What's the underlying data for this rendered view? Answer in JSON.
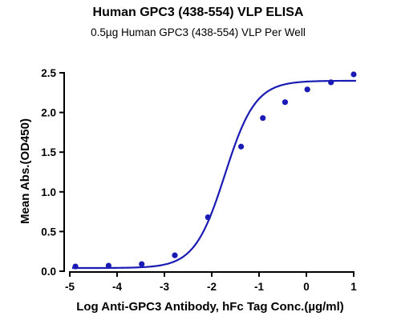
{
  "chart_data": {
    "type": "scatter",
    "title": "Human GPC3 (438-554) VLP ELISA",
    "subtitle": "0.5µg Human GPC3 (438-554) VLP Per Well",
    "xlabel": "Log Anti-GPC3 Antibody, hFc Tag Conc.(µg/ml)",
    "ylabel": "Mean Abs.(OD450)",
    "xlim": [
      -5,
      1
    ],
    "ylim": [
      0,
      2.5
    ],
    "xticks": [
      "-5",
      "-4",
      "-3",
      "-2",
      "-1",
      "0",
      "1"
    ],
    "yticks": [
      "0.0",
      "0.5",
      "1.0",
      "1.5",
      "2.0",
      "2.5"
    ],
    "grid": false,
    "legend": "none",
    "series": [
      {
        "points": [
          {
            "x": -4.88,
            "y": 0.06
          },
          {
            "x": -4.18,
            "y": 0.07
          },
          {
            "x": -3.48,
            "y": 0.09
          },
          {
            "x": -2.78,
            "y": 0.2
          },
          {
            "x": -2.08,
            "y": 0.68
          },
          {
            "x": -1.38,
            "y": 1.57
          },
          {
            "x": -0.92,
            "y": 1.93
          },
          {
            "x": -0.45,
            "y": 2.13
          },
          {
            "x": 0.02,
            "y": 2.29
          },
          {
            "x": 0.52,
            "y": 2.38
          },
          {
            "x": 1.0,
            "y": 2.48
          }
        ],
        "fit": {
          "model": "4PL sigmoid",
          "bottom": 0.04,
          "top": 2.4,
          "logEC50": -1.72,
          "hill": 1.35,
          "xrange": [
            -4.95,
            1.05
          ]
        }
      }
    ],
    "colors": {
      "series": "#1a1ab4",
      "axis": "#000000"
    }
  }
}
